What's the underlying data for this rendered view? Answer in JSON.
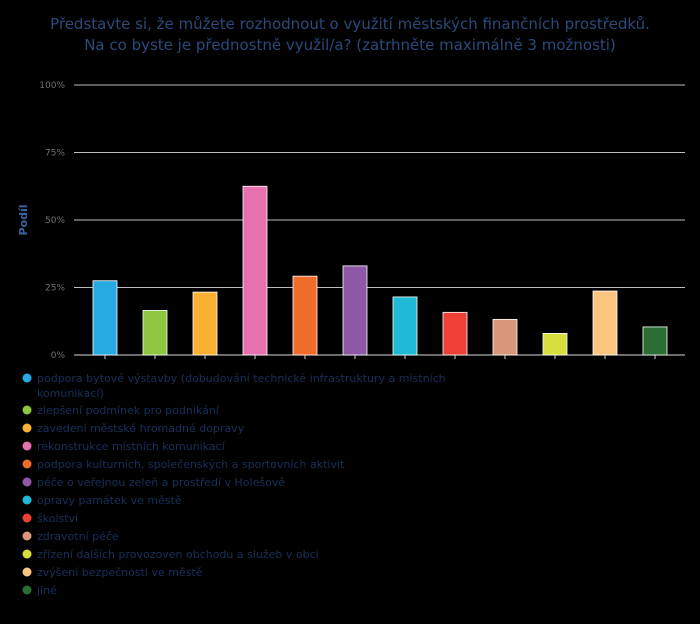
{
  "chart_data": {
    "type": "bar",
    "title": [
      "Představte si, že můžete rozhodnout o využití městských finančních prostředků.",
      "Na co byste je přednostně využil/a? (zatrhněte maximálně 3 možnosti)"
    ],
    "ylabel": "Podíl",
    "ylim": [
      0,
      100
    ],
    "yticks": [
      "0%",
      "25%",
      "50%",
      "75%",
      "100%"
    ],
    "grid": true,
    "legend_position": "bottom-left",
    "categories": [
      "podpora bytové výstavby (dobudování technické infrastruktury a místních komunikací)",
      "zlepšení podmínek pro podnikání",
      "zavedení městské hromadné dopravy",
      "rekonstrukce místních komunikací",
      "podpora kulturních, společenských a sportovních aktivit",
      "péče o veřejnou zeleň a prostředí v Holešově",
      "opravy památek ve městě",
      "školství",
      "zdravotní péče",
      "zřízení dalších provozoven obchodu a služeb v obci",
      "zvýšení bezpečnosti ve městě",
      "jiné"
    ],
    "values": [
      27.5,
      16.5,
      23.3,
      62.5,
      29.2,
      33.0,
      21.5,
      15.8,
      13.2,
      8.0,
      23.7,
      10.4
    ],
    "colors": [
      "#27aae1",
      "#8dc63f",
      "#fbb034",
      "#e770ae",
      "#f26c2b",
      "#8e58a6",
      "#1fbad6",
      "#ee4036",
      "#d9967b",
      "#d6df3d",
      "#fcc57f",
      "#2a6e36"
    ],
    "legend_lines": [
      [
        "podpora bytové výstavby (dobudování technické infrastruktury a místních",
        "komunikací)"
      ],
      [
        "zlepšení podmínek pro podnikání"
      ],
      [
        "zavedení městské hromadné dopravy"
      ],
      [
        "rekonstrukce místních komunikací"
      ],
      [
        "podpora kulturních, společenských a sportovních aktivit"
      ],
      [
        "péče o veřejnou zeleň a prostředí v Holešově"
      ],
      [
        "opravy památek ve městě"
      ],
      [
        "školství"
      ],
      [
        "zdravotní péče"
      ],
      [
        "zřízení dalších provozoven obchodu a služeb v obci"
      ],
      [
        "zvýšení bezpečnosti ve městě"
      ],
      [
        "jiné"
      ]
    ]
  }
}
